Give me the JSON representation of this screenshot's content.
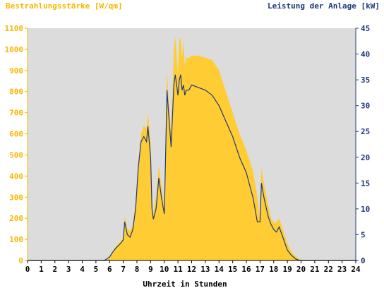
{
  "chart_data": {
    "type": "area",
    "left_axis_title": "Bestrahlungsstärke [W/qm]",
    "right_axis_title": "Leistung der Anlage [kW]",
    "xlabel": "Uhrzeit in Stunden",
    "x_ticks": [
      "0",
      "1",
      "2",
      "3",
      "4",
      "5",
      "6",
      "7",
      "8",
      "9",
      "10",
      "11",
      "12",
      "13",
      "14",
      "15",
      "16",
      "17",
      "18",
      "19",
      "20",
      "21",
      "22",
      "23",
      "24"
    ],
    "left_ticks": [
      "0",
      "100",
      "200",
      "300",
      "400",
      "500",
      "600",
      "700",
      "800",
      "900",
      "1000",
      "1100"
    ],
    "right_ticks": [
      "0",
      "5",
      "10",
      "15",
      "20",
      "25",
      "30",
      "35",
      "40",
      "45"
    ],
    "xlim": [
      0,
      24
    ],
    "ylim_left": [
      0,
      1100
    ],
    "ylim_right": [
      0,
      45
    ],
    "grid": false,
    "colors": {
      "plot_background": "#dcdcdc",
      "irradiance_fill": "#ffcc33",
      "power_line": "#1f3a78",
      "left_axis": "#f5b800",
      "right_axis": "#1f3a78"
    },
    "series": [
      {
        "axis": "left",
        "style": "filled-area",
        "x": [
          0,
          5.6,
          5.8,
          6.0,
          6.2,
          6.5,
          6.8,
          7.0,
          7.1,
          7.3,
          7.5,
          7.7,
          7.9,
          8.1,
          8.3,
          8.5,
          8.7,
          8.8,
          9.0,
          9.1,
          9.2,
          9.4,
          9.6,
          9.8,
          10.0,
          10.2,
          10.3,
          10.5,
          10.7,
          10.8,
          11.0,
          11.1,
          11.2,
          11.3,
          11.4,
          11.5,
          11.6,
          11.8,
          12.0,
          12.5,
          13.0,
          13.5,
          14.0,
          14.5,
          15.0,
          15.5,
          16.0,
          16.5,
          16.8,
          17.0,
          17.1,
          17.3,
          17.6,
          17.8,
          18.0,
          18.2,
          18.4,
          18.6,
          18.8,
          19.0,
          19.3,
          19.6,
          19.9,
          20.2,
          24
        ],
        "values": [
          0,
          0,
          10,
          20,
          40,
          70,
          90,
          110,
          210,
          150,
          140,
          170,
          280,
          450,
          600,
          640,
          620,
          700,
          560,
          280,
          220,
          300,
          450,
          350,
          250,
          900,
          780,
          600,
          1000,
          1060,
          880,
          1040,
          1060,
          960,
          1040,
          920,
          960,
          960,
          970,
          970,
          960,
          950,
          900,
          800,
          700,
          600,
          520,
          420,
          300,
          190,
          440,
          360,
          260,
          200,
          180,
          180,
          200,
          160,
          120,
          80,
          40,
          20,
          5,
          0,
          0
        ]
      },
      {
        "axis": "right",
        "style": "line",
        "x": [
          0,
          5.6,
          5.8,
          6.0,
          6.2,
          6.5,
          6.8,
          7.0,
          7.1,
          7.3,
          7.5,
          7.7,
          7.9,
          8.1,
          8.3,
          8.5,
          8.7,
          8.8,
          9.0,
          9.1,
          9.2,
          9.4,
          9.6,
          9.8,
          10.0,
          10.2,
          10.3,
          10.5,
          10.7,
          10.8,
          11.0,
          11.1,
          11.2,
          11.3,
          11.4,
          11.5,
          11.6,
          11.8,
          12.0,
          12.5,
          13.0,
          13.5,
          14.0,
          14.5,
          15.0,
          15.5,
          16.0,
          16.5,
          16.8,
          17.0,
          17.1,
          17.3,
          17.6,
          17.8,
          18.0,
          18.2,
          18.4,
          18.6,
          18.8,
          19.0,
          19.3,
          19.6,
          19.9,
          20.2,
          24
        ],
        "values": [
          0,
          0,
          0.3,
          0.7,
          1.5,
          2.5,
          3.3,
          4,
          7.5,
          5,
          4.5,
          6,
          10,
          18,
          23,
          24,
          23,
          26,
          20,
          10,
          8,
          10,
          16,
          12,
          9,
          33,
          29,
          22,
          34,
          36,
          32,
          35,
          36,
          33,
          34,
          32,
          33,
          33,
          34,
          33.5,
          33,
          32,
          30,
          27,
          24,
          20,
          17,
          12,
          7.5,
          7.5,
          15,
          12,
          8.5,
          7,
          6,
          5.5,
          6.5,
          5,
          3.5,
          2,
          1,
          0.3,
          0,
          0,
          0
        ]
      }
    ]
  }
}
